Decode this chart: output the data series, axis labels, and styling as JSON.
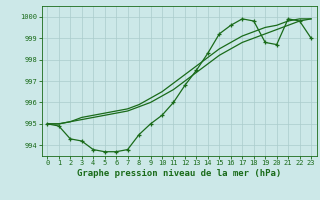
{
  "line1": {
    "x": [
      0,
      1,
      2,
      3,
      4,
      5,
      6,
      7,
      8,
      9,
      10,
      11,
      12,
      13,
      14,
      15,
      16,
      17,
      18,
      19,
      20,
      21,
      22,
      23
    ],
    "y": [
      995.0,
      994.9,
      994.3,
      994.2,
      993.8,
      993.7,
      993.7,
      993.8,
      994.5,
      995.0,
      995.4,
      996.0,
      996.8,
      997.5,
      998.3,
      999.2,
      999.6,
      999.9,
      999.8,
      998.8,
      998.7,
      999.9,
      999.8,
      999.0
    ]
  },
  "line2": {
    "x": [
      0,
      1,
      2,
      3,
      4,
      5,
      6,
      7,
      8,
      9,
      10,
      11,
      12,
      13,
      14,
      15,
      16,
      17,
      18,
      19,
      20,
      21,
      22,
      23
    ],
    "y": [
      995.0,
      995.0,
      995.1,
      995.2,
      995.3,
      995.4,
      995.5,
      995.6,
      995.8,
      996.0,
      996.3,
      996.6,
      997.0,
      997.4,
      997.8,
      998.2,
      998.5,
      998.8,
      999.0,
      999.2,
      999.4,
      999.6,
      999.8,
      999.9
    ]
  },
  "line3": {
    "x": [
      0,
      1,
      2,
      3,
      4,
      5,
      6,
      7,
      8,
      9,
      10,
      11,
      12,
      13,
      14,
      15,
      16,
      17,
      18,
      19,
      20,
      21,
      22,
      23
    ],
    "y": [
      995.0,
      995.0,
      995.1,
      995.3,
      995.4,
      995.5,
      995.6,
      995.7,
      995.9,
      996.2,
      996.5,
      996.9,
      997.3,
      997.7,
      998.1,
      998.5,
      998.8,
      999.1,
      999.3,
      999.5,
      999.6,
      999.8,
      999.9,
      999.9
    ]
  },
  "line_color": "#1a6b1a",
  "bg_color": "#cce8e8",
  "grid_color": "#aacccc",
  "xlabel": "Graphe pression niveau de la mer (hPa)",
  "ylim": [
    993.5,
    1000.5
  ],
  "xlim": [
    -0.5,
    23.5
  ],
  "yticks": [
    994,
    995,
    996,
    997,
    998,
    999,
    1000
  ],
  "xticks": [
    0,
    1,
    2,
    3,
    4,
    5,
    6,
    7,
    8,
    9,
    10,
    11,
    12,
    13,
    14,
    15,
    16,
    17,
    18,
    19,
    20,
    21,
    22,
    23
  ],
  "tick_fontsize": 5.0,
  "xlabel_fontsize": 6.5,
  "marker": "+",
  "markersize": 3.5,
  "linewidth": 0.9
}
